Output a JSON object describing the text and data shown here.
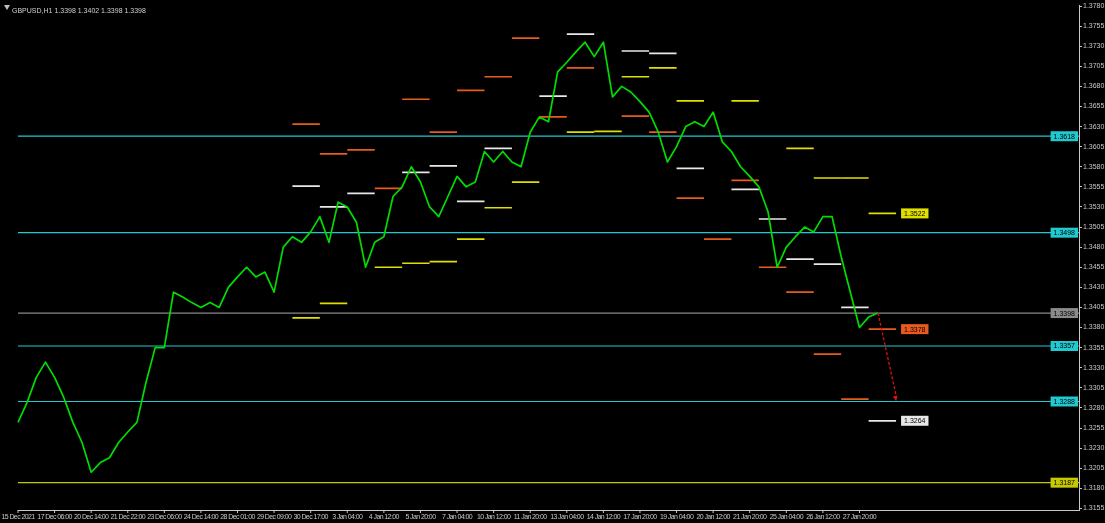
{
  "chart_data": {
    "type": "line",
    "title": "GBPUSD,H1 1.3398 1.3402 1.3398 1.3398",
    "categories": [
      "15 Dec 2021",
      null,
      null,
      null,
      "17 Dec 06:00",
      null,
      null,
      null,
      "20 Dec 14:00",
      null,
      null,
      null,
      "21 Dec 22:00",
      null,
      null,
      null,
      "23 Dec 06:00",
      null,
      null,
      null,
      "24 Dec 14:00",
      null,
      null,
      null,
      "28 Dec 01:00",
      null,
      null,
      null,
      "29 Dec 09:00",
      null,
      null,
      null,
      "30 Dec 17:00",
      null,
      null,
      null,
      "3 Jan 04:00",
      null,
      null,
      null,
      "4 Jan 12:00",
      null,
      null,
      null,
      "5 Jan 20:00",
      null,
      null,
      null,
      "7 Jan 04:00",
      null,
      null,
      null,
      "10 Jan 12:00",
      null,
      null,
      null,
      "11 Jan 20:00",
      null,
      null,
      null,
      "13 Jan 04:00",
      null,
      null,
      null,
      "14 Jan 12:00",
      null,
      null,
      null,
      "17 Jan 20:00",
      null,
      null,
      null,
      "19 Jan 04:00",
      null,
      null,
      null,
      "20 Jan 12:00",
      null,
      null,
      null,
      "21 Jan 20:00",
      null,
      null,
      null,
      "25 Jan 04:00",
      null,
      null,
      null,
      "26 Jan 12:00",
      null,
      null,
      null,
      "27 Jan 20:00",
      null,
      null,
      null,
      null,
      null,
      null,
      null,
      null,
      null,
      null,
      null,
      null,
      null,
      null,
      null,
      null,
      null,
      null,
      null,
      null,
      null,
      null,
      null,
      null
    ],
    "series": [
      {
        "color": "#00dd00",
        "values": [
          1.3262,
          1.3287,
          1.3318,
          1.3337,
          1.3318,
          1.3293,
          1.3262,
          1.3237,
          1.32,
          1.3212,
          1.3218,
          1.3237,
          1.325,
          1.3262,
          1.3312,
          1.3355,
          1.3355,
          1.3424,
          1.3418,
          1.3411,
          1.3405,
          1.3411,
          1.3405,
          1.343,
          1.3443,
          1.3455,
          1.3443,
          1.3449,
          1.3424,
          1.348,
          1.3493,
          1.3486,
          1.3499,
          1.3518,
          1.3486,
          1.3536,
          1.353,
          1.3511,
          1.3455,
          1.3486,
          1.3493,
          1.3543,
          1.3555,
          1.358,
          1.3561,
          1.353,
          1.3518,
          1.3543,
          1.3568,
          1.3555,
          1.3561,
          1.3599,
          1.3586,
          1.3599,
          1.3586,
          1.358,
          1.3623,
          1.3642,
          1.3636,
          1.3698,
          1.371,
          1.3723,
          1.3735,
          1.3717,
          1.3735,
          1.3667,
          1.368,
          1.3673,
          1.3661,
          1.3648,
          1.3623,
          1.3586,
          1.3605,
          1.363,
          1.3636,
          1.363,
          1.3648,
          1.3611,
          1.3599,
          1.358,
          1.3568,
          1.3555,
          1.3524,
          1.3455,
          1.348,
          1.3493,
          1.3505,
          1.3499,
          1.3518,
          1.3518,
          1.3468,
          1.3424,
          1.338,
          1.3393,
          1.3398,
          null,
          null,
          null,
          null,
          null,
          null,
          null,
          null,
          null,
          null,
          null,
          null,
          null,
          null,
          null,
          null,
          null,
          null,
          null,
          null,
          null,
          null
        ]
      },
      {
        "color": "#e8e8e8",
        "values": [
          null,
          null,
          null,
          null,
          null,
          null,
          null,
          null,
          null,
          null,
          null,
          null,
          null,
          null,
          null,
          null,
          null,
          null,
          null,
          null,
          null,
          null,
          null,
          null,
          null,
          null,
          null,
          null,
          null,
          null,
          1.3556,
          1.3556,
          1.3556,
          1.3556,
          null,
          null,
          1.3547,
          1.3547,
          1.3547,
          1.3547,
          null,
          null,
          1.3573,
          1.3573,
          1.3573,
          1.3573,
          null,
          null,
          1.3537,
          1.3537,
          1.3537,
          1.3537,
          null,
          null,
          null,
          null,
          null,
          null,
          null,
          null,
          1.3745,
          1.3745,
          1.3745,
          1.3745,
          null,
          null,
          1.3724,
          1.3724,
          1.3724,
          1.3724,
          null,
          null,
          1.3578,
          1.3578,
          1.3578,
          1.3578,
          null,
          null,
          1.3552,
          1.3552,
          1.3552,
          1.3552,
          null,
          null,
          1.3465,
          1.3465,
          1.3465,
          1.3465,
          null,
          null,
          1.3405,
          1.3405,
          1.3405,
          1.3405,
          null,
          null,
          null,
          null,
          null,
          null,
          null,
          null,
          null,
          null,
          null,
          null,
          null,
          null,
          null,
          null,
          null,
          null,
          null,
          null,
          null,
          null,
          null
        ]
      },
      {
        "color": "#e8e8e8",
        "values": [
          null,
          null,
          null,
          null,
          null,
          null,
          null,
          null,
          null,
          null,
          null,
          null,
          null,
          null,
          null,
          null,
          null,
          null,
          null,
          null,
          null,
          null,
          null,
          null,
          null,
          null,
          null,
          null,
          null,
          null,
          null,
          null,
          null,
          1.353,
          1.353,
          1.353,
          1.353,
          null,
          null,
          null,
          null,
          null,
          null,
          null,
          null,
          1.3581,
          1.3581,
          1.3581,
          1.3581,
          null,
          null,
          1.3603,
          1.3603,
          1.3603,
          1.3603,
          null,
          null,
          1.3668,
          1.3668,
          1.3668,
          1.3668,
          null,
          null,
          null,
          null,
          null,
          null,
          null,
          null,
          1.3721,
          1.3721,
          1.3721,
          1.3721,
          null,
          null,
          null,
          null,
          null,
          null,
          null,
          null,
          1.3515,
          1.3515,
          1.3515,
          1.3515,
          null,
          null,
          1.3459,
          1.3459,
          1.3459,
          1.3459,
          null,
          null,
          1.3264,
          1.3264,
          1.3264,
          1.3264,
          null,
          null,
          null,
          null,
          null,
          null,
          null,
          null,
          null,
          null,
          null,
          null,
          null,
          null,
          null,
          null,
          null,
          null,
          null,
          null
        ],
        "value_labels": [
          null,
          null,
          null,
          null,
          null,
          null,
          null,
          null,
          null,
          null,
          null,
          null,
          null,
          null,
          null,
          null,
          null,
          null,
          null,
          null,
          null,
          null,
          null,
          null,
          null,
          null,
          null,
          null,
          null,
          null,
          null,
          null,
          null,
          null,
          null,
          null,
          null,
          null,
          null,
          null,
          null,
          null,
          null,
          null,
          null,
          null,
          null,
          null,
          null,
          null,
          null,
          null,
          null,
          null,
          null,
          null,
          null,
          null,
          null,
          null,
          null,
          null,
          null,
          null,
          null,
          null,
          null,
          null,
          null,
          null,
          null,
          null,
          null,
          null,
          null,
          null,
          null,
          null,
          null,
          null,
          null,
          null,
          null,
          null,
          null,
          null,
          null,
          null,
          null,
          null,
          null,
          null,
          null,
          null,
          null,
          null,
          "1.3264",
          null,
          null,
          null,
          null,
          null,
          null,
          null,
          null,
          null,
          null,
          null,
          null,
          null,
          null,
          null,
          null,
          null,
          null,
          null,
          null
        ]
      },
      {
        "color": "#e0e000",
        "values": [
          null,
          null,
          null,
          null,
          null,
          null,
          null,
          null,
          null,
          null,
          null,
          null,
          null,
          null,
          null,
          null,
          null,
          null,
          null,
          null,
          null,
          null,
          null,
          null,
          null,
          null,
          null,
          null,
          null,
          null,
          1.3392,
          1.3392,
          1.3392,
          1.3392,
          null,
          null,
          null,
          null,
          null,
          null,
          null,
          null,
          1.346,
          1.346,
          1.346,
          1.346,
          null,
          null,
          1.349,
          1.349,
          1.349,
          1.349,
          null,
          null,
          1.3561,
          1.3561,
          1.3561,
          1.3561,
          null,
          null,
          1.3623,
          1.3623,
          1.3623,
          1.3623,
          null,
          null,
          1.3692,
          1.3692,
          1.3692,
          1.3692,
          null,
          null,
          1.3662,
          1.3662,
          1.3662,
          1.3662,
          null,
          null,
          1.3662,
          1.3662,
          1.3662,
          1.3662,
          null,
          null,
          1.3603,
          1.3603,
          1.3603,
          1.3603,
          null,
          null,
          1.3566,
          1.3566,
          1.3566,
          1.3566,
          null,
          null,
          null,
          null,
          null,
          null,
          null,
          null,
          null,
          null,
          null,
          null,
          null,
          null,
          null,
          null,
          null,
          null,
          null,
          null,
          null,
          null,
          null
        ]
      },
      {
        "color": "#e0e000",
        "values": [
          null,
          null,
          null,
          null,
          null,
          null,
          null,
          null,
          null,
          null,
          null,
          null,
          null,
          null,
          null,
          null,
          null,
          null,
          null,
          null,
          null,
          null,
          null,
          null,
          null,
          null,
          null,
          null,
          null,
          null,
          null,
          null,
          null,
          1.341,
          1.341,
          1.341,
          1.341,
          null,
          null,
          1.3455,
          1.3455,
          1.3455,
          1.3455,
          null,
          null,
          1.3462,
          1.3462,
          1.3462,
          1.3462,
          null,
          null,
          1.3529,
          1.3529,
          1.3529,
          1.3529,
          null,
          null,
          null,
          null,
          null,
          null,
          null,
          null,
          1.3624,
          1.3624,
          1.3624,
          1.3624,
          null,
          null,
          1.3703,
          1.3703,
          1.3703,
          1.3703,
          null,
          null,
          null,
          null,
          null,
          null,
          null,
          null,
          null,
          null,
          null,
          null,
          null,
          null,
          1.3566,
          1.3566,
          1.3566,
          1.3566,
          null,
          null,
          1.3522,
          1.3522,
          1.3522,
          1.3522,
          null,
          null,
          null,
          null,
          null,
          null,
          null,
          null,
          null,
          null,
          null,
          null,
          null,
          null,
          null,
          null,
          null,
          null,
          null,
          null
        ],
        "value_labels": [
          null,
          null,
          null,
          null,
          null,
          null,
          null,
          null,
          null,
          null,
          null,
          null,
          null,
          null,
          null,
          null,
          null,
          null,
          null,
          null,
          null,
          null,
          null,
          null,
          null,
          null,
          null,
          null,
          null,
          null,
          null,
          null,
          null,
          null,
          null,
          null,
          null,
          null,
          null,
          null,
          null,
          null,
          null,
          null,
          null,
          null,
          null,
          null,
          null,
          null,
          null,
          null,
          null,
          null,
          null,
          null,
          null,
          null,
          null,
          null,
          null,
          null,
          null,
          null,
          null,
          null,
          null,
          null,
          null,
          null,
          null,
          null,
          null,
          null,
          null,
          null,
          null,
          null,
          null,
          null,
          null,
          null,
          null,
          null,
          null,
          null,
          null,
          null,
          null,
          null,
          null,
          null,
          null,
          null,
          null,
          null,
          "1.3522",
          null,
          null,
          null,
          null,
          null,
          null,
          null,
          null,
          null,
          null,
          null,
          null,
          null,
          null,
          null,
          null,
          null,
          null,
          null,
          null
        ]
      },
      {
        "color": "#e85a1e",
        "values": [
          null,
          null,
          null,
          null,
          null,
          null,
          null,
          null,
          null,
          null,
          null,
          null,
          null,
          null,
          null,
          null,
          null,
          null,
          null,
          null,
          null,
          null,
          null,
          null,
          null,
          null,
          null,
          null,
          null,
          null,
          1.3633,
          1.3633,
          1.3633,
          1.3633,
          null,
          null,
          1.3601,
          1.3601,
          1.3601,
          1.3601,
          null,
          null,
          1.3664,
          1.3664,
          1.3664,
          1.3664,
          null,
          null,
          1.3675,
          1.3675,
          1.3675,
          1.3675,
          null,
          null,
          1.374,
          1.374,
          1.374,
          1.374,
          null,
          null,
          1.3703,
          1.3703,
          1.3703,
          1.3703,
          null,
          null,
          1.3643,
          1.3643,
          1.3643,
          1.3643,
          null,
          null,
          1.3541,
          1.3541,
          1.3541,
          1.3541,
          null,
          null,
          1.3563,
          1.3563,
          1.3563,
          1.3563,
          null,
          null,
          1.3424,
          1.3424,
          1.3424,
          1.3424,
          null,
          null,
          1.3291,
          1.3291,
          1.3291,
          1.3291,
          null,
          null,
          null,
          null,
          null,
          null,
          null,
          null,
          null,
          null,
          null,
          null,
          null,
          null,
          null,
          null,
          null,
          null,
          null,
          null,
          null,
          null,
          null
        ]
      },
      {
        "color": "#e85a1e",
        "values": [
          null,
          null,
          null,
          null,
          null,
          null,
          null,
          null,
          null,
          null,
          null,
          null,
          null,
          null,
          null,
          null,
          null,
          null,
          null,
          null,
          null,
          null,
          null,
          null,
          null,
          null,
          null,
          null,
          null,
          null,
          null,
          null,
          null,
          1.3596,
          1.3596,
          1.3596,
          1.3596,
          null,
          null,
          1.3553,
          1.3553,
          1.3553,
          1.3553,
          null,
          null,
          1.3623,
          1.3623,
          1.3623,
          1.3623,
          null,
          null,
          1.3692,
          1.3692,
          1.3692,
          1.3692,
          null,
          null,
          1.3642,
          1.3642,
          1.3642,
          1.3642,
          null,
          null,
          null,
          null,
          null,
          null,
          null,
          null,
          1.3623,
          1.3623,
          1.3623,
          1.3623,
          null,
          null,
          1.349,
          1.349,
          1.349,
          1.349,
          null,
          null,
          1.3455,
          1.3455,
          1.3455,
          1.3455,
          null,
          null,
          1.3347,
          1.3347,
          1.3347,
          1.3347,
          null,
          null,
          1.3378,
          1.3378,
          1.3378,
          1.3378,
          null,
          null,
          null,
          null,
          null,
          null,
          null,
          null,
          null,
          null,
          null,
          null,
          null,
          null,
          null,
          null,
          null,
          null,
          null,
          null
        ],
        "value_labels": [
          null,
          null,
          null,
          null,
          null,
          null,
          null,
          null,
          null,
          null,
          null,
          null,
          null,
          null,
          null,
          null,
          null,
          null,
          null,
          null,
          null,
          null,
          null,
          null,
          null,
          null,
          null,
          null,
          null,
          null,
          null,
          null,
          null,
          null,
          null,
          null,
          null,
          null,
          null,
          null,
          null,
          null,
          null,
          null,
          null,
          null,
          null,
          null,
          null,
          null,
          null,
          null,
          null,
          null,
          null,
          null,
          null,
          null,
          null,
          null,
          null,
          null,
          null,
          null,
          null,
          null,
          null,
          null,
          null,
          null,
          null,
          null,
          null,
          null,
          null,
          null,
          null,
          null,
          null,
          null,
          null,
          null,
          null,
          null,
          null,
          null,
          null,
          null,
          null,
          null,
          null,
          null,
          null,
          null,
          null,
          null,
          "1.3378",
          null,
          null,
          null,
          null,
          null,
          null,
          null,
          null,
          null,
          null,
          null,
          null,
          null,
          null,
          null,
          null,
          null,
          null,
          null,
          null
        ]
      }
    ],
    "ylim": [
      1.3153,
      1.3781
    ],
    "yticks": [
      1.3155,
      {
        "value": 1.318,
        "label": "1.3180"
      },
      1.3205,
      {
        "value": 1.323,
        "label": "1.3230"
      },
      1.3255,
      {
        "value": 1.328,
        "label": "1.3280"
      },
      1.3305,
      {
        "value": 1.333,
        "label": "1.3330"
      },
      1.3355,
      {
        "value": 1.338,
        "label": "1.3380"
      },
      1.3405,
      {
        "value": 1.343,
        "label": "1.3430"
      },
      1.3455,
      {
        "value": 1.348,
        "label": "1.3480"
      },
      1.3505,
      {
        "value": 1.353,
        "label": "1.3530"
      },
      1.3555,
      {
        "value": 1.358,
        "label": "1.3580"
      },
      1.3605,
      {
        "value": 1.363,
        "label": "1.3630"
      },
      1.3655,
      {
        "value": 1.368,
        "label": "1.3680"
      },
      1.3705,
      {
        "value": 1.373,
        "label": "1.3730"
      },
      1.3755,
      {
        "value": 1.378,
        "label": "1.3780"
      }
    ],
    "ref_lines": [
      {
        "axis": "y",
        "value": 1.3618,
        "label": "1.3618",
        "color": "#20c8d0"
      },
      {
        "axis": "y",
        "value": 1.3498,
        "label": "1.3498",
        "color": "#20c8d0"
      },
      {
        "axis": "y",
        "value": 1.3398,
        "label": "1.3398",
        "color": "#8a8a8a"
      },
      {
        "axis": "y",
        "value": 1.3357,
        "label": "1.3357",
        "color": "#20c8d0"
      },
      {
        "axis": "y",
        "value": 1.3288,
        "label": "1.3288",
        "color": "#20c8d0"
      },
      {
        "axis": "y",
        "value": 1.3187,
        "label": "1.3187",
        "color": "#c8c800"
      }
    ]
  }
}
